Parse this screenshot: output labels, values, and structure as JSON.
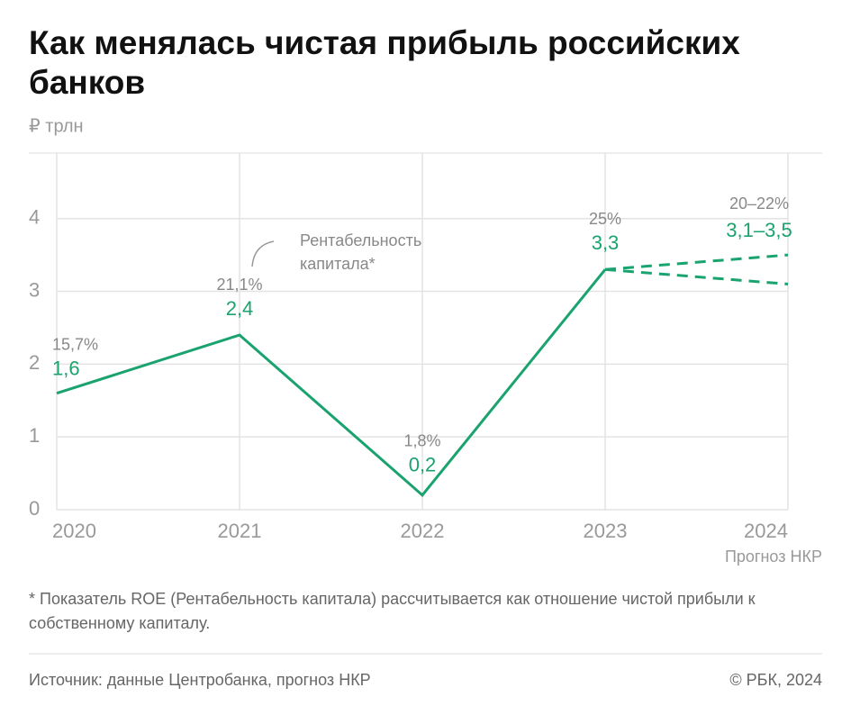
{
  "chart_data": {
    "type": "line",
    "title": "Как менялась чистая прибыль российских банков",
    "unit": "₽ трлн",
    "categories": [
      "2020",
      "2021",
      "2022",
      "2023",
      "2024"
    ],
    "forecast_note": "Прогноз НКР",
    "series": [
      {
        "color": "#1aa36f",
        "dashed": false,
        "values": [
          1.6,
          2.4,
          0.2,
          3.3,
          null
        ],
        "value_labels": [
          "1,6",
          "2,4",
          "0,2",
          "3,3",
          null
        ]
      },
      {
        "color": "#1aa36f",
        "dashed": true,
        "values": [
          null,
          null,
          null,
          3.3,
          3.1
        ]
      },
      {
        "color": "#1aa36f",
        "dashed": true,
        "values": [
          null,
          null,
          null,
          3.3,
          3.5
        ]
      }
    ],
    "forecast_label": "3,1–3,5",
    "roe_labels": [
      "15,7%",
      "21,1%",
      "1,8%",
      "25%",
      "20–22%"
    ],
    "roe_callout": [
      "Рентабельность",
      "капитала*"
    ],
    "ylim": [
      0,
      4.9
    ],
    "yticks": [
      0,
      1,
      2,
      3,
      4
    ],
    "grid": true,
    "footnote": "* Показатель ROE (Рентабельность капитала) рассчитывается как отношение чистой прибыли к собственному капиталу.",
    "source": "Источник: данные Центробанка, прогноз НКР",
    "copyright": "© РБК, 2024"
  }
}
